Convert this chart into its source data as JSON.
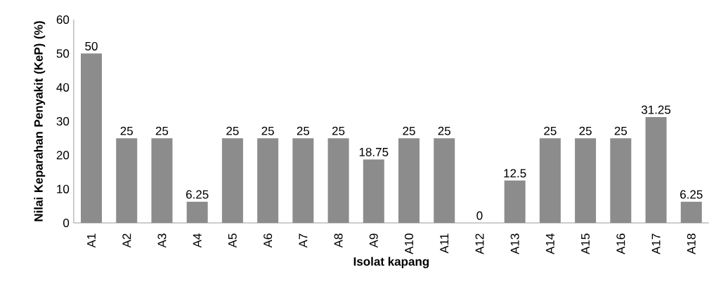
{
  "chart_data": {
    "type": "bar",
    "xlabel": "Isolat kapang",
    "ylabel": "Nilai Keparahan Penyakit (KeP) (%)",
    "categories": [
      "A1",
      "A2",
      "A3",
      "A4",
      "A5",
      "A6",
      "A7",
      "A8",
      "A9",
      "A10",
      "A11",
      "A12",
      "A13",
      "A14",
      "A15",
      "A16",
      "A17",
      "A18"
    ],
    "values": [
      50,
      25,
      25,
      6.25,
      25,
      25,
      25,
      25,
      18.75,
      25,
      25,
      0,
      12.5,
      25,
      25,
      25,
      31.25,
      6.25
    ],
    "color": "#8c8c8c",
    "ylim": [
      0,
      60
    ],
    "yticks": [
      0,
      10,
      20,
      30,
      40,
      50,
      60
    ],
    "data_labels": true,
    "grid": false
  }
}
